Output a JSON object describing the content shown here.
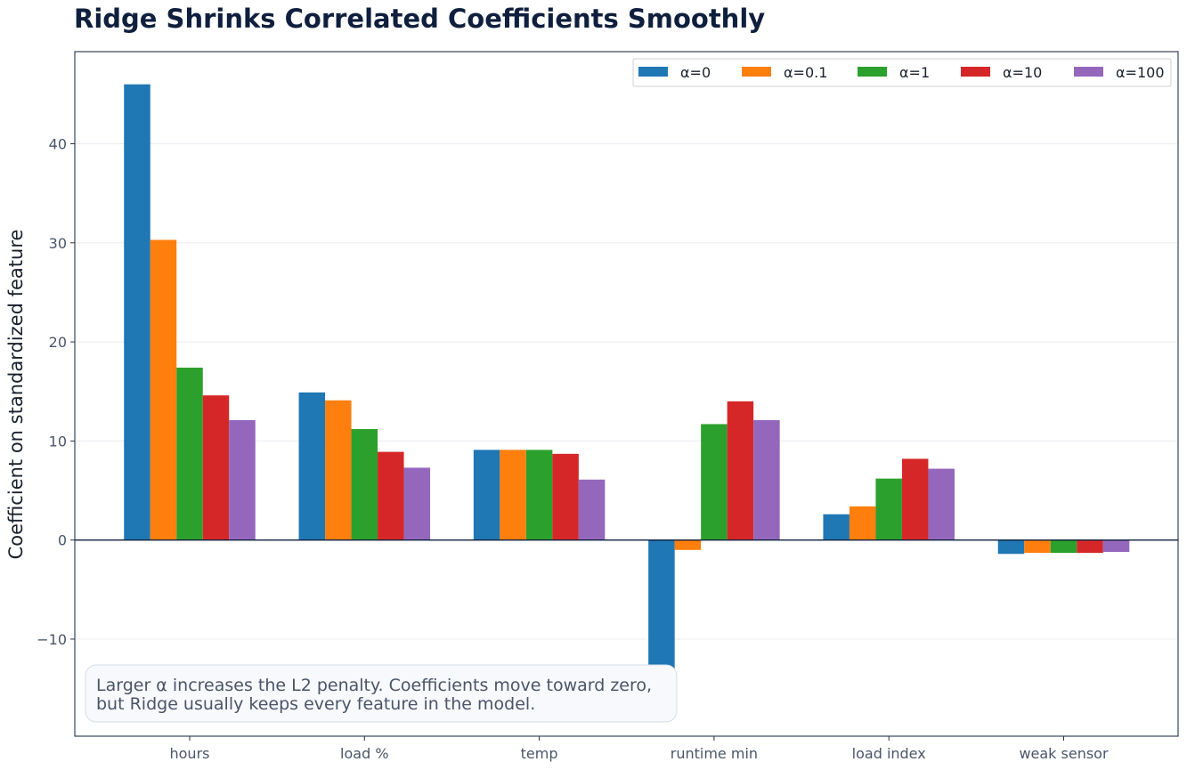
{
  "chart_data": {
    "type": "bar",
    "title": "Ridge Shrinks Correlated Coefficients Smoothly",
    "xlabel": "",
    "ylabel": "Coefficient on standardized feature",
    "categories": [
      "hours",
      "load %",
      "temp",
      "runtime min",
      "load index",
      "weak sensor"
    ],
    "series": [
      {
        "name": "α=0",
        "color": "#1f77b4",
        "values": [
          46.0,
          14.9,
          9.1,
          -13.0,
          2.6,
          -1.4
        ]
      },
      {
        "name": "α=0.1",
        "color": "#ff7f0e",
        "values": [
          30.3,
          14.1,
          9.1,
          -1.0,
          3.4,
          -1.3
        ]
      },
      {
        "name": "α=1",
        "color": "#2ca02c",
        "values": [
          17.4,
          11.2,
          9.1,
          11.7,
          6.2,
          -1.3
        ]
      },
      {
        "name": "α=10",
        "color": "#d62728",
        "values": [
          14.6,
          8.9,
          8.7,
          14.0,
          8.2,
          -1.3
        ]
      },
      {
        "name": "α=100",
        "color": "#9467bd",
        "values": [
          12.1,
          7.3,
          6.1,
          12.1,
          7.2,
          -1.2
        ]
      }
    ],
    "yticks": [
      -10,
      0,
      10,
      20,
      30,
      40
    ],
    "ytick_labels": [
      "−10",
      "0",
      "10",
      "20",
      "30",
      "40"
    ],
    "ylim": [
      -19.8,
      49.3
    ],
    "grid": "horizontal",
    "legend_position": "top-right",
    "annotation": [
      "Larger α increases the L2 penalty. Coefficients move toward zero,",
      "but Ridge usually keeps every feature in the model."
    ]
  }
}
